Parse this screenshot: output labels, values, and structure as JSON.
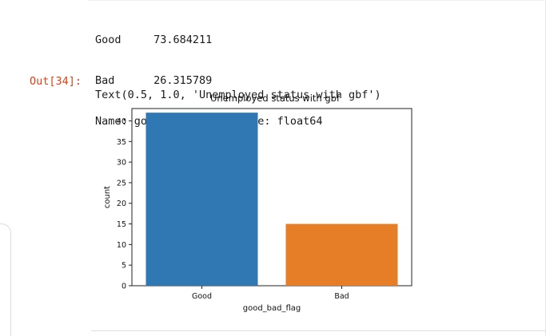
{
  "stdout": {
    "lines": [
      "Good     73.684211",
      "Bad      26.315789",
      "Name: good_bad_flag, dtype: float64"
    ]
  },
  "output": {
    "prompt": "Out[34]:",
    "text": "Text(0.5, 1.0, 'Unemployed status with gbf')"
  },
  "chart_data": {
    "type": "bar",
    "title": "Unemployed status with gbf",
    "xlabel": "good_bad_flag",
    "ylabel": "count",
    "categories": [
      "Good",
      "Bad"
    ],
    "values": [
      42,
      15
    ],
    "colors": [
      "#2f78b4",
      "#e67e27"
    ],
    "ylim": [
      0,
      43
    ],
    "yticks": [
      0,
      5,
      10,
      15,
      20,
      25,
      30,
      35,
      40
    ],
    "grid": false
  }
}
